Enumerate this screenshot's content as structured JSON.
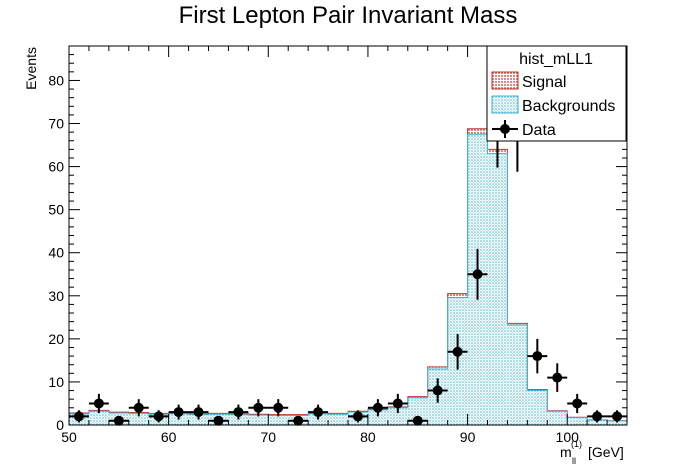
{
  "chart_data": {
    "type": "bar",
    "title": "First Lepton Pair Invariant Mass",
    "xlabel_main": "m",
    "xlabel_sub": "ll",
    "xlabel_sup": "(1)",
    "xlabel_unit": "[GeV]",
    "ylabel": "Events",
    "xlim": [
      50,
      106
    ],
    "ylim": [
      0,
      88
    ],
    "x_ticks": [
      50,
      60,
      70,
      80,
      90,
      100
    ],
    "y_ticks": [
      0,
      10,
      20,
      30,
      40,
      50,
      60,
      70,
      80
    ],
    "bin_edges": [
      50,
      52,
      54,
      56,
      58,
      60,
      62,
      64,
      66,
      68,
      70,
      72,
      74,
      76,
      78,
      80,
      82,
      84,
      86,
      88,
      90,
      92,
      94,
      96,
      98,
      100,
      102,
      104,
      106
    ],
    "legend": {
      "header": "hist_mLL1",
      "entries": [
        "Signal",
        "Backgrounds",
        "Data"
      ]
    },
    "series": [
      {
        "name": "Backgrounds",
        "color": "#7fd0e6",
        "values": [
          2.6,
          3.2,
          2.8,
          2.7,
          2.5,
          2.6,
          2.4,
          2.5,
          2.4,
          2.3,
          2.2,
          2.2,
          2.6,
          2.5,
          3.0,
          3.5,
          4.0,
          6.3,
          13.0,
          29.6,
          67.5,
          63.0,
          23.2,
          8.0,
          3.2,
          1.7,
          1.2,
          1.0
        ],
        "signal_on_top": [
          0.2,
          0.2,
          0.2,
          0.2,
          0.2,
          0.2,
          0.2,
          0.2,
          0.2,
          0.2,
          0.2,
          0.2,
          0.2,
          0.2,
          0.2,
          0.2,
          0.2,
          0.3,
          0.5,
          0.9,
          1.3,
          1.0,
          0.4,
          0.2,
          0.1,
          0.1,
          0.0,
          0.0
        ]
      },
      {
        "name": "Signal",
        "color": "#c0392b"
      },
      {
        "name": "Data",
        "color": "#000000",
        "points": [
          {
            "x": 51,
            "y": 2
          },
          {
            "x": 53,
            "y": 5
          },
          {
            "x": 55,
            "y": 1
          },
          {
            "x": 57,
            "y": 4
          },
          {
            "x": 59,
            "y": 2
          },
          {
            "x": 61,
            "y": 3
          },
          {
            "x": 63,
            "y": 3
          },
          {
            "x": 65,
            "y": 1
          },
          {
            "x": 67,
            "y": 3
          },
          {
            "x": 69,
            "y": 4
          },
          {
            "x": 71,
            "y": 4
          },
          {
            "x": 73,
            "y": 1
          },
          {
            "x": 75,
            "y": 3
          },
          {
            "x": 79,
            "y": 2
          },
          {
            "x": 81,
            "y": 4
          },
          {
            "x": 83,
            "y": 5
          },
          {
            "x": 85,
            "y": 1
          },
          {
            "x": 87,
            "y": 8
          },
          {
            "x": 89,
            "y": 17
          },
          {
            "x": 91,
            "y": 35
          },
          {
            "x": 93,
            "y": 68
          },
          {
            "x": 95,
            "y": 67
          },
          {
            "x": 97,
            "y": 16
          },
          {
            "x": 99,
            "y": 11
          },
          {
            "x": 101,
            "y": 5
          },
          {
            "x": 103,
            "y": 2
          },
          {
            "x": 105,
            "y": 2
          }
        ]
      }
    ]
  }
}
